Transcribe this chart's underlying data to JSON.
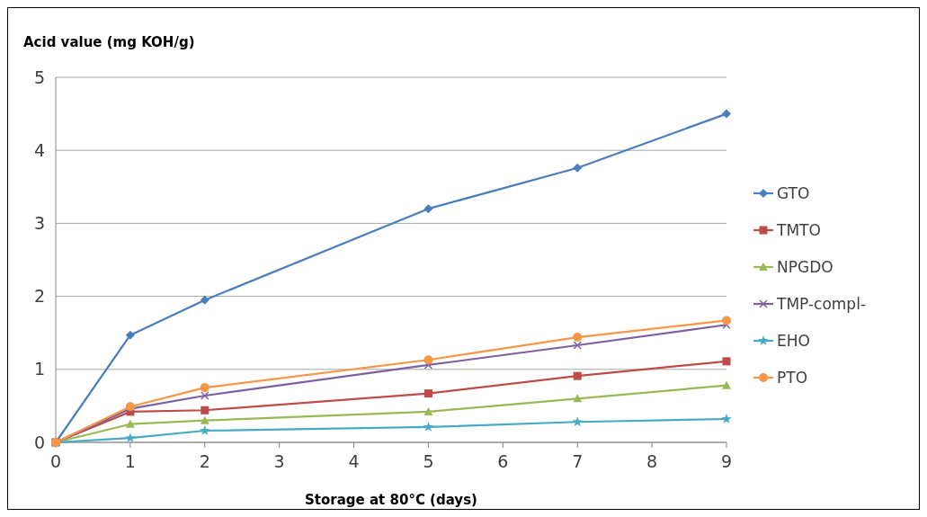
{
  "chart_data": {
    "type": "line",
    "ylabel": "Acid value (mg KOH/g)",
    "xlabel": "Storage at 80°C (days)",
    "x": [
      0,
      1,
      2,
      5,
      7,
      9
    ],
    "xlim": [
      0,
      9
    ],
    "xticks": [
      0,
      1,
      2,
      3,
      4,
      5,
      6,
      7,
      8,
      9
    ],
    "ylim": [
      0,
      5
    ],
    "yticks": [
      0,
      1,
      2,
      3,
      4,
      5
    ],
    "grid": "y",
    "legend": "right",
    "series": [
      {
        "name": "GTO",
        "color": "#4a7ebb",
        "marker": "diamond",
        "values": [
          0,
          1.47,
          1.95,
          3.2,
          3.76,
          4.5
        ]
      },
      {
        "name": "TMTO",
        "color": "#be4b48",
        "marker": "square",
        "values": [
          0,
          0.42,
          0.44,
          0.67,
          0.91,
          1.11
        ]
      },
      {
        "name": "NPGDO",
        "color": "#98b954",
        "marker": "triangle",
        "values": [
          0,
          0.25,
          0.3,
          0.42,
          0.6,
          0.78
        ]
      },
      {
        "name": "TMP-compl-",
        "color": "#7d60a0",
        "marker": "cross",
        "values": [
          0,
          0.46,
          0.64,
          1.06,
          1.33,
          1.61
        ]
      },
      {
        "name": "EHO",
        "color": "#46aac5",
        "marker": "star",
        "values": [
          0,
          0.06,
          0.16,
          0.21,
          0.28,
          0.32
        ]
      },
      {
        "name": "PTO",
        "color": "#f79646",
        "marker": "circle",
        "values": [
          0,
          0.49,
          0.75,
          1.13,
          1.44,
          1.67
        ]
      }
    ]
  }
}
